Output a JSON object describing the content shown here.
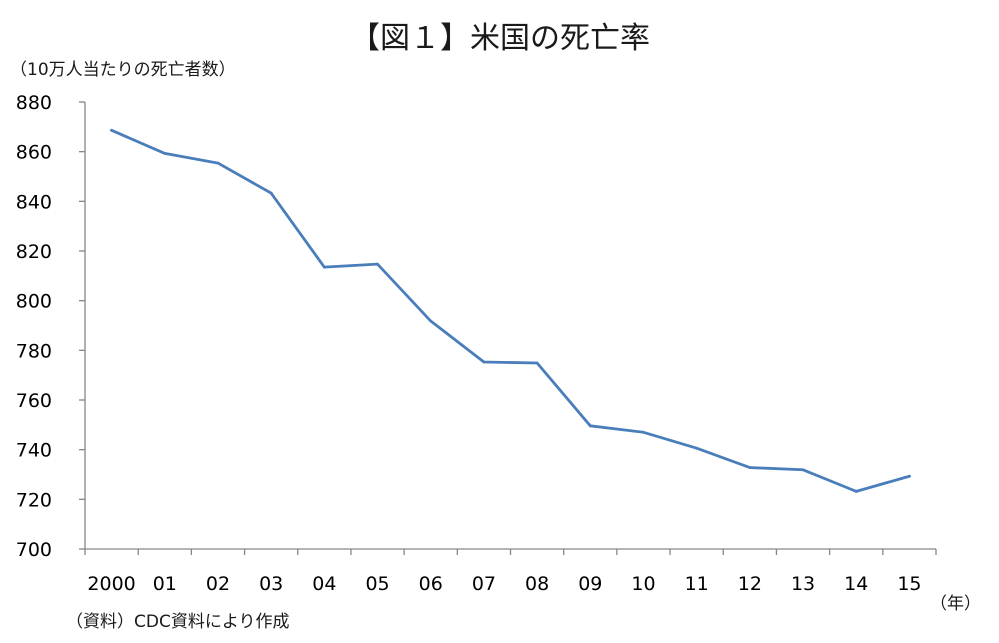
{
  "chart_data": {
    "type": "line",
    "title": "【図１】米国の死亡率",
    "ylabel": "（10万人当たりの死亡者数）",
    "xlabel": "（年）",
    "source": "（資料）CDC資料により作成",
    "categories": [
      "2000",
      "01",
      "02",
      "03",
      "04",
      "05",
      "06",
      "07",
      "08",
      "09",
      "10",
      "11",
      "12",
      "13",
      "14",
      "15"
    ],
    "series": [
      {
        "values": [
          868.6,
          859.3,
          855.4,
          843.3,
          813.5,
          814.7,
          791.8,
          775.3,
          774.9,
          749.6,
          747.0,
          740.6,
          732.8,
          731.9,
          723.2,
          729.3
        ]
      }
    ],
    "ylim": [
      700,
      880
    ],
    "yticks": [
      700,
      720,
      740,
      760,
      780,
      800,
      820,
      840,
      860,
      880
    ],
    "grid": false,
    "legend": "none",
    "colors": {
      "line": "#4a7ebb",
      "axis": "#868686",
      "text": "#1a1a1a"
    }
  }
}
